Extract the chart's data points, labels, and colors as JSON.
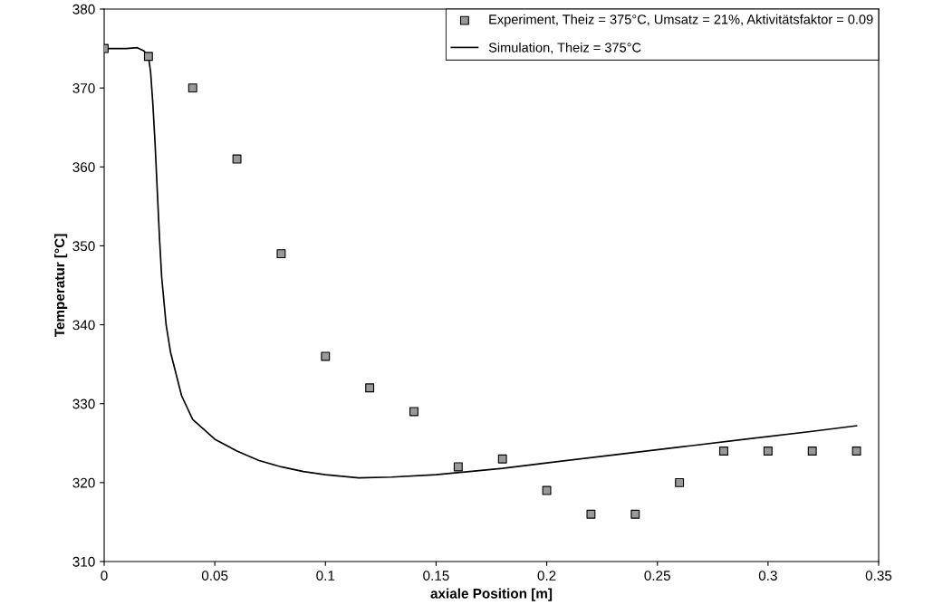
{
  "chart_data": {
    "type": "scatter",
    "xlabel": "axiale Position [m]",
    "ylabel": "Temperatur [°C]",
    "xlim": [
      0,
      0.35
    ],
    "xticks": [
      0,
      0.05,
      0.1,
      0.15,
      0.2,
      0.25,
      0.3,
      0.35
    ],
    "ylim": [
      310,
      380
    ],
    "yticks": [
      310,
      320,
      330,
      340,
      350,
      360,
      370,
      380
    ],
    "grid": false,
    "legend": "top right",
    "series": [
      {
        "name": "Experiment, Theiz = 375°C, Umsatz = 21%, Aktivitätsfaktor = 0.09",
        "marker": "square",
        "color": "#999999",
        "x": [
          0,
          0.02,
          0.04,
          0.06,
          0.08,
          0.1,
          0.12,
          0.14,
          0.16,
          0.18,
          0.2,
          0.22,
          0.24,
          0.26,
          0.28,
          0.3,
          0.32,
          0.34
        ],
        "values": [
          375,
          374,
          370,
          361,
          349,
          336,
          332,
          329,
          322,
          323,
          319,
          316,
          316,
          320,
          324,
          324,
          324,
          324
        ]
      },
      {
        "name": "Simulation, Theiz = 375°C",
        "type": "line",
        "marker": "none",
        "line_style": "solid",
        "color": "#000000",
        "x": [
          0,
          0.005,
          0.01,
          0.015,
          0.018,
          0.02,
          0.021,
          0.022,
          0.023,
          0.024,
          0.025,
          0.026,
          0.028,
          0.03,
          0.035,
          0.04,
          0.05,
          0.06,
          0.07,
          0.08,
          0.09,
          0.1,
          0.115,
          0.13,
          0.15,
          0.18,
          0.2,
          0.23,
          0.26,
          0.29,
          0.32,
          0.34
        ],
        "values": [
          375,
          375,
          375,
          375.1,
          374.7,
          374,
          372,
          368,
          363,
          357,
          351,
          346,
          340,
          336.5,
          331,
          328,
          325.5,
          324,
          322.8,
          322,
          321.4,
          321,
          320.6,
          320.7,
          321,
          321.8,
          322.5,
          323.5,
          324.5,
          325.5,
          326.5,
          327.2
        ]
      }
    ]
  }
}
